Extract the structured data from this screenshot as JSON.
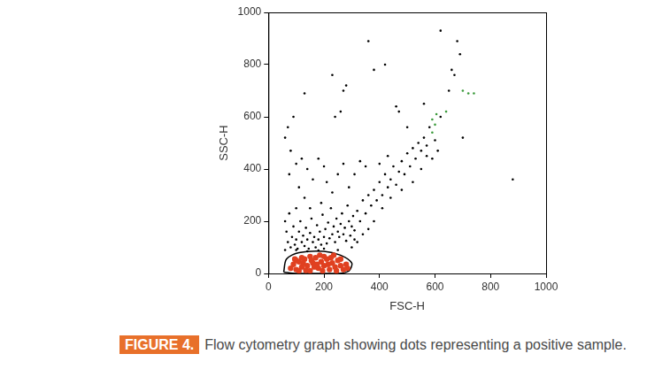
{
  "figure": {
    "label": "FIGURE 4.",
    "caption": "Flow cytometry graph showing dots representing a positive sample."
  },
  "chart_data": {
    "type": "scatter",
    "x_label": "FSC-H",
    "y_label": "SSC-H",
    "xlim": [
      0,
      1000
    ],
    "xticks": [
      0,
      200,
      400,
      600,
      800,
      1000
    ],
    "ylim": [
      0,
      1000
    ],
    "yticks": [
      0,
      200,
      400,
      600,
      800,
      1000
    ],
    "grid": false,
    "series": [
      {
        "color": "#000000",
        "marker": "circle",
        "x": [
          60,
          70,
          80,
          85,
          90,
          95,
          100,
          105,
          110,
          115,
          120,
          125,
          130,
          135,
          140,
          145,
          150,
          155,
          160,
          165,
          170,
          175,
          180,
          185,
          190,
          195,
          200,
          205,
          210,
          215,
          220,
          225,
          230,
          235,
          240,
          245,
          250,
          255,
          260,
          265,
          270,
          275,
          280,
          285,
          290,
          295,
          300,
          305,
          310,
          320,
          330,
          340,
          350,
          360,
          370,
          380,
          390,
          400,
          410,
          420,
          430,
          440,
          450,
          460,
          470,
          480,
          490,
          500,
          510,
          520,
          530,
          540,
          550,
          560,
          570,
          580,
          600,
          620,
          650,
          660,
          670,
          690,
          680,
          620,
          60,
          70,
          80,
          90,
          75,
          100,
          120,
          140,
          110,
          160,
          130,
          180,
          200,
          210,
          230,
          250,
          270,
          190,
          150,
          100,
          240,
          260,
          230,
          270,
          280,
          360,
          380,
          420,
          460,
          470,
          330,
          310,
          290,
          350,
          400,
          430,
          60,
          65,
          75,
          340,
          320,
          360,
          380,
          300,
          310,
          410,
          440,
          520,
          550,
          570,
          590,
          610,
          480,
          700,
          880,
          130,
          560,
          500,
          100,
          200,
          250,
          140,
          180
        ],
        "values": [
          90,
          120,
          100,
          140,
          180,
          110,
          130,
          95,
          160,
          200,
          120,
          145,
          105,
          175,
          130,
          95,
          155,
          210,
          120,
          140,
          100,
          185,
          130,
          160,
          110,
          225,
          140,
          170,
          115,
          195,
          135,
          250,
          150,
          180,
          120,
          210,
          160,
          140,
          190,
          230,
          150,
          175,
          125,
          260,
          200,
          145,
          180,
          220,
          165,
          240,
          200,
          280,
          230,
          300,
          260,
          320,
          280,
          350,
          300,
          380,
          330,
          360,
          410,
          340,
          390,
          430,
          380,
          460,
          410,
          480,
          440,
          500,
          470,
          520,
          490,
          560,
          510,
          600,
          700,
          780,
          760,
          840,
          890,
          930,
          520,
          560,
          470,
          600,
          380,
          420,
          440,
          400,
          330,
          360,
          290,
          440,
          410,
          350,
          310,
          380,
          420,
          270,
          250,
          250,
          600,
          620,
          760,
          700,
          720,
          890,
          780,
          800,
          640,
          620,
          430,
          380,
          330,
          410,
          420,
          450,
          200,
          160,
          230,
          150,
          120,
          170,
          200,
          100,
          130,
          250,
          290,
          350,
          400,
          450,
          440,
          470,
          320,
          520,
          360,
          690,
          650,
          560,
          90,
          95,
          90,
          85,
          88
        ]
      },
      {
        "color": "#e04020",
        "marker": "circle",
        "x": [
          80,
          90,
          100,
          110,
          120,
          130,
          140,
          150,
          160,
          170,
          180,
          190,
          200,
          210,
          220,
          230,
          240,
          250,
          260,
          270,
          280,
          120,
          150,
          200,
          100,
          175,
          225,
          195,
          135,
          260,
          285,
          95,
          165,
          215,
          245,
          110,
          125,
          155,
          185,
          235
        ],
        "values": [
          20,
          35,
          15,
          45,
          25,
          55,
          30,
          10,
          40,
          60,
          20,
          45,
          30,
          55,
          15,
          40,
          25,
          50,
          30,
          15,
          35,
          60,
          65,
          65,
          50,
          35,
          60,
          10,
          12,
          55,
          20,
          55,
          25,
          35,
          10,
          10,
          40,
          50,
          70,
          70
        ]
      },
      {
        "color": "#3a9a3a",
        "marker": "circle",
        "x": [
          590,
          600,
          605,
          590,
          640,
          720,
          700,
          740
        ],
        "values": [
          590,
          570,
          610,
          540,
          620,
          690,
          700,
          690
        ]
      },
      {
        "type": "line",
        "color": "#000000",
        "marker": "none",
        "line_style": "solid",
        "x": [
          55,
          65,
          110,
          200,
          260,
          300,
          290,
          250,
          100,
          55
        ],
        "values": [
          5,
          55,
          80,
          85,
          70,
          40,
          10,
          0,
          0,
          5
        ]
      }
    ]
  }
}
